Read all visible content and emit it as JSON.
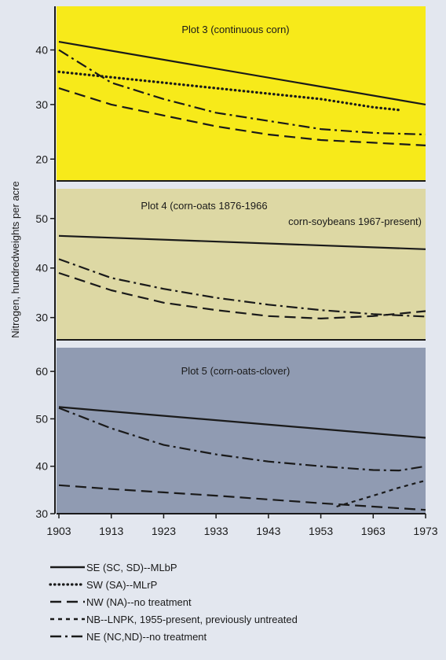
{
  "chart_data": {
    "type": "line",
    "ylabel": "Nitrogen, hundredweights per acre",
    "x_ticks": [
      1903,
      1913,
      1923,
      1933,
      1943,
      1953,
      1963,
      1973
    ],
    "xlim": [
      1903,
      1973
    ],
    "series_styles": {
      "SE": {
        "color": "#1a1a1a",
        "dash": "solid"
      },
      "SW": {
        "color": "#1a1a1a",
        "dash": "dotted"
      },
      "NW": {
        "color": "#1a1a1a",
        "dash": "dashed"
      },
      "NB": {
        "color": "#1a1a1a",
        "dash": "shortdash"
      },
      "NE": {
        "color": "#1a1a1a",
        "dash": "dashdot"
      }
    },
    "legend": [
      {
        "key": "SE",
        "label": "SE (SC, SD)--MLbP"
      },
      {
        "key": "SW",
        "label": "SW (SA)--MLrP"
      },
      {
        "key": "NW",
        "label": "NW (NA)--no treatment"
      },
      {
        "key": "NB",
        "label": "NB--LNPK, 1955-present, previously untreated"
      },
      {
        "key": "NE",
        "label": "NE (NC,ND)--no treatment"
      }
    ],
    "panels": [
      {
        "title": "Plot 3 (continuous corn)",
        "background": "#f7ea1a",
        "ylim": [
          16,
          48
        ],
        "y_ticks": [
          20,
          30,
          40
        ],
        "series": [
          {
            "key": "SE",
            "points": [
              [
                1903,
                41.5
              ],
              [
                1973,
                30
              ]
            ]
          },
          {
            "key": "SW",
            "points": [
              [
                1903,
                36
              ],
              [
                1913,
                35
              ],
              [
                1923,
                34
              ],
              [
                1933,
                33
              ],
              [
                1943,
                32
              ],
              [
                1953,
                31
              ],
              [
                1963,
                29.5
              ],
              [
                1968,
                29
              ]
            ]
          },
          {
            "key": "NE",
            "points": [
              [
                1903,
                40
              ],
              [
                1908,
                37
              ],
              [
                1913,
                34
              ],
              [
                1923,
                31
              ],
              [
                1933,
                28.5
              ],
              [
                1943,
                27
              ],
              [
                1953,
                25.5
              ],
              [
                1963,
                24.8
              ],
              [
                1973,
                24.5
              ]
            ]
          },
          {
            "key": "NW",
            "points": [
              [
                1903,
                33
              ],
              [
                1913,
                30
              ],
              [
                1923,
                28
              ],
              [
                1933,
                26
              ],
              [
                1943,
                24.5
              ],
              [
                1953,
                23.5
              ],
              [
                1963,
                23
              ],
              [
                1973,
                22.5
              ]
            ]
          }
        ]
      },
      {
        "title": "Plot 4 (corn-oats 1876-1966",
        "title_line2": "corn-soybeans 1967-present)",
        "background": "#ddd8a4",
        "ylim": [
          25.5,
          56
        ],
        "y_ticks": [
          30,
          40,
          50
        ],
        "series": [
          {
            "key": "SE",
            "points": [
              [
                1903,
                46.5
              ],
              [
                1973,
                43.8
              ]
            ]
          },
          {
            "key": "NE",
            "points": [
              [
                1903,
                41.8
              ],
              [
                1913,
                38
              ],
              [
                1923,
                35.8
              ],
              [
                1933,
                34
              ],
              [
                1943,
                32.6
              ],
              [
                1953,
                31.5
              ],
              [
                1963,
                30.7
              ],
              [
                1973,
                30.2
              ]
            ]
          },
          {
            "key": "NW",
            "points": [
              [
                1903,
                39
              ],
              [
                1913,
                35.5
              ],
              [
                1923,
                33
              ],
              [
                1933,
                31.5
              ],
              [
                1943,
                30.3
              ],
              [
                1953,
                29.8
              ],
              [
                1963,
                30.3
              ],
              [
                1973,
                31.3
              ]
            ]
          }
        ]
      },
      {
        "title": "Plot 5 (corn-oats-clover)",
        "background": "#909bb2",
        "ylim": [
          30,
          65
        ],
        "y_ticks": [
          30,
          40,
          50,
          60
        ],
        "series": [
          {
            "key": "SE",
            "points": [
              [
                1903,
                52.5
              ],
              [
                1973,
                46
              ]
            ]
          },
          {
            "key": "NE",
            "points": [
              [
                1903,
                52.3
              ],
              [
                1913,
                48
              ],
              [
                1923,
                44.5
              ],
              [
                1933,
                42.5
              ],
              [
                1943,
                41
              ],
              [
                1953,
                40
              ],
              [
                1963,
                39.2
              ],
              [
                1968,
                39.1
              ],
              [
                1973,
                40
              ]
            ]
          },
          {
            "key": "NW",
            "points": [
              [
                1903,
                36
              ],
              [
                1913,
                35.2
              ],
              [
                1923,
                34.5
              ],
              [
                1933,
                33.8
              ],
              [
                1943,
                33
              ],
              [
                1953,
                32.2
              ],
              [
                1963,
                31.5
              ],
              [
                1973,
                30.8
              ]
            ]
          },
          {
            "key": "NB",
            "points": [
              [
                1956,
                31.5
              ],
              [
                1963,
                33.8
              ],
              [
                1968,
                35.5
              ],
              [
                1973,
                37
              ]
            ]
          }
        ]
      }
    ]
  }
}
